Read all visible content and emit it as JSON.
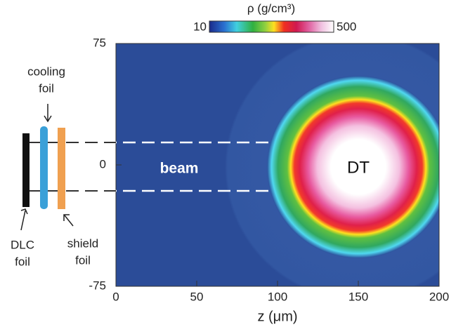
{
  "chart_data": {
    "type": "density-map",
    "xlabel": "z (μm)",
    "xlim": [
      0,
      200
    ],
    "xticks": [
      0,
      50,
      100,
      150,
      200
    ],
    "ylim": [
      -75,
      75
    ],
    "yticks": [
      -75,
      0,
      75
    ],
    "colorbar": {
      "label": "ρ (g/cm³)",
      "ticks": [
        10,
        500
      ]
    },
    "annotations": {
      "beam": "beam",
      "target": "DT",
      "cooling": [
        "cooling",
        "foil"
      ],
      "dlc": [
        "DLC",
        "foil"
      ],
      "shield": [
        "shield",
        "foil"
      ]
    }
  }
}
